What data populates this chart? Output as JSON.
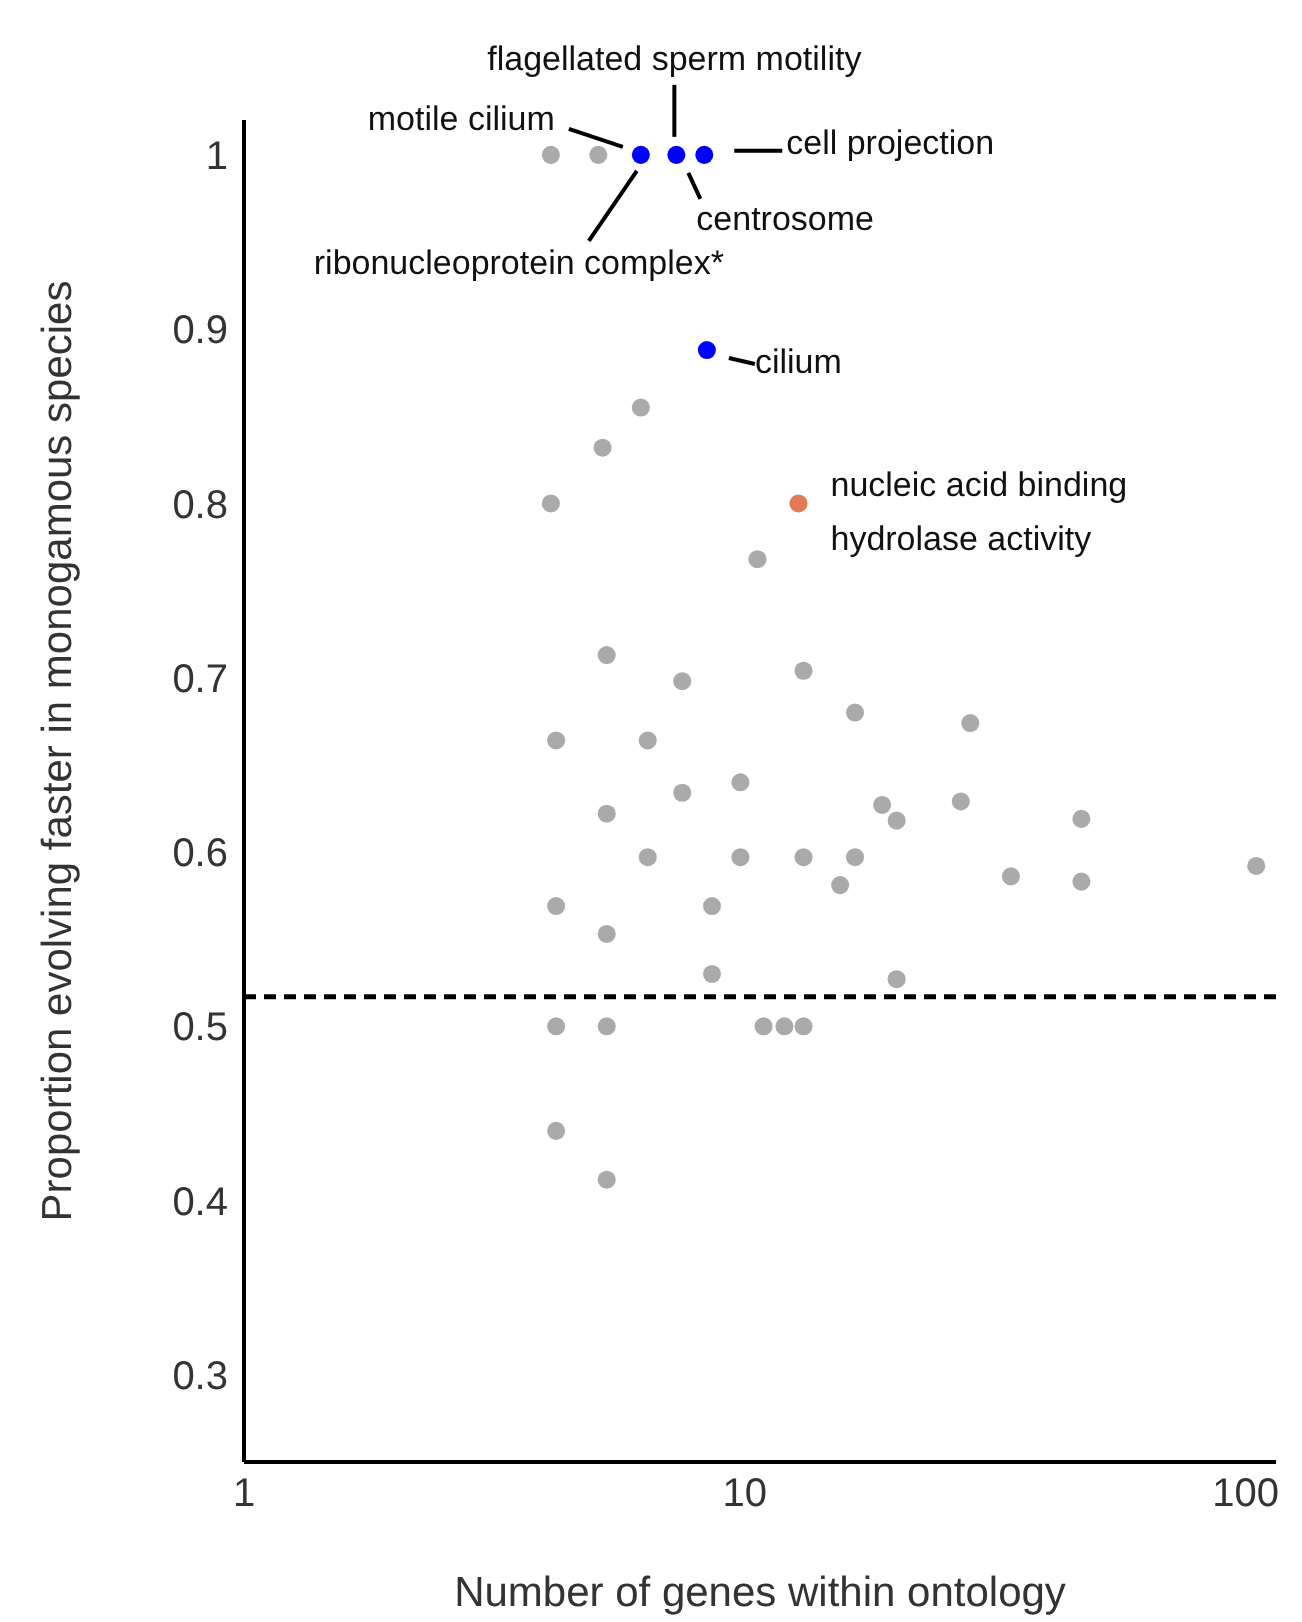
{
  "chart_data": {
    "type": "scatter",
    "xlabel": "Number of genes within ontology",
    "ylabel": "Proportion evolving faster in monogamous species",
    "log": "x",
    "xlim": [
      1,
      115
    ],
    "xticks": [
      1,
      10,
      100
    ],
    "ylim": [
      0.25,
      1.02
    ],
    "yticks": [
      {
        "value": 0.3,
        "label": "0.3"
      },
      {
        "value": 0.4,
        "label": "0.4"
      },
      {
        "value": 0.5,
        "label": "0.5"
      },
      {
        "value": 0.6,
        "label": "0.6"
      },
      {
        "value": 0.7,
        "label": "0.7"
      },
      {
        "value": 0.8,
        "label": "0.8"
      },
      {
        "value": 0.9,
        "label": "0.9"
      },
      {
        "value": 1,
        "label": "1"
      }
    ],
    "marker": "circle",
    "grid": false,
    "legend": false,
    "series": [
      {
        "color": "#aaaaaa",
        "x": [
          4.1,
          5.1,
          6.2,
          5.2,
          4.1,
          10.6,
          5.3,
          7.5,
          13.1,
          4.2,
          6.4,
          16.6,
          28.2,
          7.5,
          9.8,
          5.3,
          18.8,
          20.1,
          27,
          47,
          6.4,
          9.8,
          13.1,
          16.6,
          15.5,
          34,
          47,
          105,
          4.2,
          8.6,
          5.3,
          8.6,
          20.1,
          4.2,
          5.3,
          10.9,
          12,
          13.1,
          4.2,
          5.3
        ],
        "values": [
          1,
          1,
          0.855,
          0.832,
          0.8,
          0.768,
          0.713,
          0.698,
          0.704,
          0.664,
          0.664,
          0.68,
          0.674,
          0.634,
          0.64,
          0.622,
          0.627,
          0.618,
          0.629,
          0.619,
          0.597,
          0.597,
          0.597,
          0.597,
          0.581,
          0.586,
          0.583,
          0.592,
          0.569,
          0.569,
          0.553,
          0.53,
          0.527,
          0.5,
          0.5,
          0.5,
          0.5,
          0.5,
          0.44,
          0.412
        ]
      },
      {
        "color": "#0000ff",
        "x": [
          6.2,
          7.3,
          8.3,
          8.4
        ],
        "values": [
          1,
          1,
          1,
          0.888
        ]
      },
      {
        "color": "#e07b54",
        "x": [
          12.8
        ],
        "values": [
          0.8
        ]
      }
    ],
    "ref_lines": [
      {
        "axis": "y",
        "value": 0.517,
        "color": "#000000",
        "line_style": "dashed"
      }
    ],
    "annotations": [
      {
        "text": "motile cilium",
        "x": 6.2,
        "y": 1
      },
      {
        "text": "flagellated sperm motility",
        "x": 7.3,
        "y": 1
      },
      {
        "text": "cell projection",
        "x": 8.3,
        "y": 1
      },
      {
        "text": "centrosome",
        "x": 7.3,
        "y": 1
      },
      {
        "text": "ribonucleoprotein complex*",
        "x": 6.2,
        "y": 1
      },
      {
        "text": "cilium",
        "x": 8.4,
        "y": 0.888
      },
      {
        "text": "nucleic acid binding",
        "x": 12.8,
        "y": 0.8
      },
      {
        "text": "hydrolase activity",
        "x": 12.8,
        "y": 0.8
      }
    ]
  }
}
